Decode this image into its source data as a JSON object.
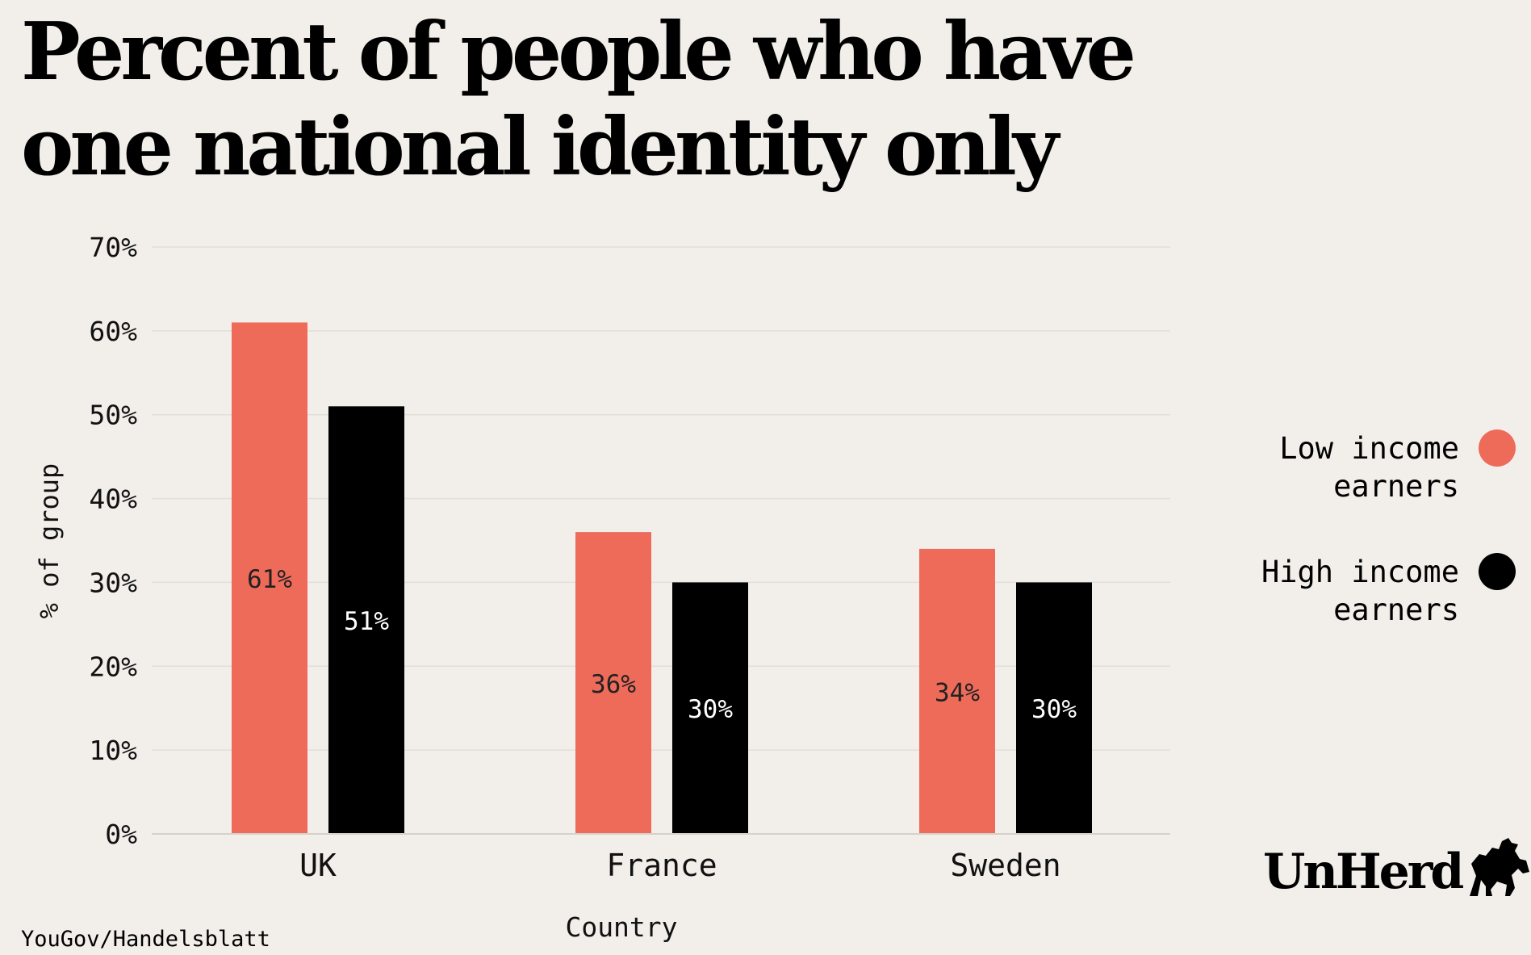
{
  "title": "Percent of people who have one national identity only",
  "source": "YouGov/Handelsblatt",
  "brand": "UnHerd",
  "colors": {
    "low": "#ee6b5a",
    "high": "#000000",
    "background": "#f2efea",
    "grid": "#e2ded8"
  },
  "legend": [
    {
      "label": "Low income\nearners",
      "color": "#ee6b5a"
    },
    {
      "label": "High income\nearners",
      "color": "#000000"
    }
  ],
  "chart_data": {
    "type": "bar",
    "categories": [
      "UK",
      "France",
      "Sweden"
    ],
    "series": [
      {
        "name": "Low income earners",
        "values": [
          61,
          36,
          34
        ],
        "labels": [
          "61%",
          "36%",
          "34%"
        ]
      },
      {
        "name": "High income earners",
        "values": [
          51,
          30,
          30
        ],
        "labels": [
          "51%",
          "30%",
          "30%"
        ]
      }
    ],
    "xlabel": "Country",
    "ylabel": "% of group",
    "ylim": [
      0,
      70
    ],
    "yticks": [
      "0%",
      "10%",
      "20%",
      "30%",
      "40%",
      "50%",
      "60%",
      "70%"
    ],
    "grid": true,
    "legend_position": "right"
  }
}
